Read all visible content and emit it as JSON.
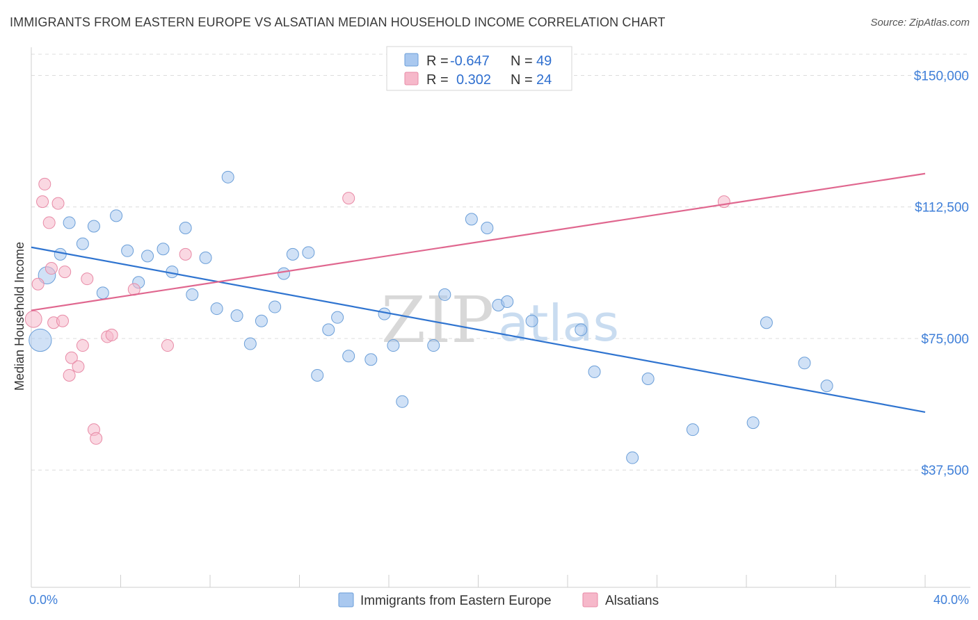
{
  "title": "IMMIGRANTS FROM EASTERN EUROPE VS ALSATIAN MEDIAN HOUSEHOLD INCOME CORRELATION CHART",
  "source": "Source: ZipAtlas.com",
  "legend": {
    "rows": [
      {
        "r_label": "R =",
        "r_value": "-0.647",
        "n_label": "N =",
        "n_value": "49",
        "color": "#a9c8ef"
      },
      {
        "r_label": "R =",
        "r_value": "0.302",
        "n_label": "N =",
        "n_value": "24",
        "color": "#f6b8ca"
      }
    ]
  },
  "bottom_legend": {
    "items": [
      {
        "label": "Immigrants from Eastern Europe",
        "color": "#a9c8ef"
      },
      {
        "label": "Alsatians",
        "color": "#f6b8ca"
      }
    ]
  },
  "watermark": {
    "zip": "ZIP",
    "atlas": "atlas"
  },
  "chart_data": {
    "type": "scatter",
    "title": "IMMIGRANTS FROM EASTERN EUROPE VS ALSATIAN MEDIAN HOUSEHOLD INCOME CORRELATION CHART",
    "xlabel": "",
    "ylabel": "Median Household Income",
    "xlim": [
      0,
      40
    ],
    "ylim": [
      10000,
      160000
    ],
    "x_tick_labels": [
      "0.0%",
      "40.0%"
    ],
    "y_ticks": [
      37500,
      75000,
      112500,
      150000
    ],
    "y_tick_labels": [
      "$37,500",
      "$75,000",
      "$112,500",
      "$150,000"
    ],
    "grid": true,
    "legend_position": "top-center",
    "series": [
      {
        "name": "Immigrants from Eastern Europe",
        "color": "#a9c8ef",
        "stroke": "#6a9ed8",
        "trend_color": "#2f74d0",
        "trend": {
          "x": [
            0,
            40
          ],
          "y": [
            101000,
            54000
          ]
        },
        "points": [
          [
            0.4,
            74500,
            3
          ],
          [
            0.7,
            93000,
            2
          ],
          [
            1.3,
            99000,
            1
          ],
          [
            1.7,
            108000,
            1
          ],
          [
            2.3,
            102000,
            1
          ],
          [
            2.8,
            107000,
            1
          ],
          [
            3.2,
            88000,
            1
          ],
          [
            3.8,
            110000,
            1
          ],
          [
            4.3,
            100000,
            1
          ],
          [
            4.8,
            91000,
            1
          ],
          [
            5.2,
            98500,
            1
          ],
          [
            5.9,
            100500,
            1
          ],
          [
            6.3,
            94000,
            1
          ],
          [
            6.9,
            106500,
            1
          ],
          [
            7.2,
            87500,
            1
          ],
          [
            7.8,
            98000,
            1
          ],
          [
            8.3,
            83500,
            1
          ],
          [
            8.8,
            121000,
            1
          ],
          [
            9.2,
            81500,
            1
          ],
          [
            9.8,
            73500,
            1
          ],
          [
            10.3,
            80000,
            1
          ],
          [
            10.9,
            84000,
            1
          ],
          [
            11.3,
            93500,
            1
          ],
          [
            11.7,
            99000,
            1
          ],
          [
            12.4,
            99500,
            1
          ],
          [
            12.8,
            64500,
            1
          ],
          [
            13.3,
            77500,
            1
          ],
          [
            13.7,
            81000,
            1
          ],
          [
            14.2,
            70000,
            1
          ],
          [
            15.2,
            69000,
            1
          ],
          [
            15.8,
            82000,
            1
          ],
          [
            16.2,
            73000,
            1
          ],
          [
            16.6,
            57000,
            1
          ],
          [
            18.0,
            73000,
            1
          ],
          [
            18.5,
            87500,
            1
          ],
          [
            19.7,
            109000,
            1
          ],
          [
            20.4,
            106500,
            1
          ],
          [
            20.9,
            84500,
            1
          ],
          [
            21.3,
            85500,
            1
          ],
          [
            22.4,
            80000,
            1
          ],
          [
            24.6,
            77500,
            1
          ],
          [
            25.2,
            65500,
            1
          ],
          [
            26.9,
            41000,
            1
          ],
          [
            27.6,
            63500,
            1
          ],
          [
            29.6,
            49000,
            1
          ],
          [
            32.3,
            51000,
            1
          ],
          [
            32.9,
            79500,
            1
          ],
          [
            34.6,
            68000,
            1
          ],
          [
            35.6,
            61500,
            1
          ]
        ]
      },
      {
        "name": "Alsatians",
        "color": "#f6b8ca",
        "stroke": "#e88aa6",
        "trend_color": "#e0678f",
        "trend": {
          "x": [
            0,
            40
          ],
          "y": [
            83000,
            122000
          ]
        },
        "points": [
          [
            0.1,
            80500,
            1.4
          ],
          [
            0.3,
            90500,
            1
          ],
          [
            0.5,
            114000,
            1
          ],
          [
            0.6,
            119000,
            1
          ],
          [
            0.8,
            108000,
            1
          ],
          [
            0.9,
            95000,
            1
          ],
          [
            1.0,
            79500,
            1
          ],
          [
            1.2,
            113500,
            1
          ],
          [
            1.4,
            80000,
            1
          ],
          [
            1.5,
            94000,
            1
          ],
          [
            1.7,
            64500,
            1
          ],
          [
            1.8,
            69500,
            1
          ],
          [
            2.1,
            67000,
            1
          ],
          [
            2.3,
            73000,
            1
          ],
          [
            2.5,
            92000,
            1
          ],
          [
            2.8,
            49000,
            1
          ],
          [
            2.9,
            46500,
            1
          ],
          [
            3.4,
            75500,
            1
          ],
          [
            3.6,
            76000,
            1
          ],
          [
            4.6,
            89000,
            1
          ],
          [
            6.1,
            73000,
            1
          ],
          [
            6.9,
            99000,
            1
          ],
          [
            14.2,
            115000,
            1
          ],
          [
            31.0,
            114000,
            1
          ]
        ]
      }
    ]
  }
}
